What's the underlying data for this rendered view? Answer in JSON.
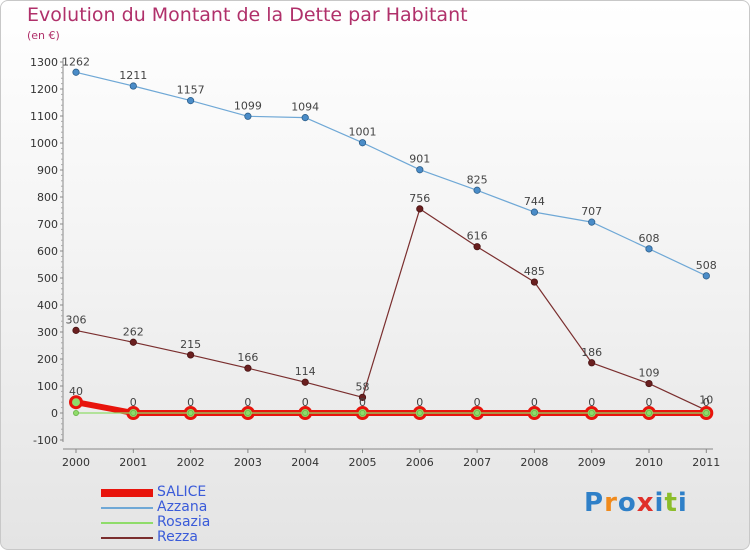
{
  "header": {
    "title": "Evolution du Montant de la Dette par Habitant",
    "subtitle": "(en €)"
  },
  "logo": {
    "text": "Proxiti",
    "colors": [
      "#2f80c8",
      "#f08a1c",
      "#2f80c8",
      "#e0302a",
      "#2f80c8",
      "#8cbd2a",
      "#2f80c8"
    ]
  },
  "chart_data": {
    "type": "line",
    "title": "Evolution du Montant de la Dette par Habitant",
    "subtitle": "(en €)",
    "xlabel": "",
    "ylabel": "",
    "x": [
      "2000",
      "2001",
      "2002",
      "2003",
      "2004",
      "2005",
      "2006",
      "2007",
      "2008",
      "2009",
      "2010",
      "2011"
    ],
    "ylim": [
      -100,
      1300
    ],
    "yticks": [
      -100,
      0,
      100,
      200,
      300,
      400,
      500,
      600,
      700,
      800,
      900,
      1000,
      1100,
      1200,
      1300
    ],
    "grid": false,
    "legend_position": "bottom-left",
    "series": [
      {
        "name": "SALICE",
        "color": "#e8140c",
        "values": [
          40,
          0,
          0,
          0,
          0,
          0,
          0,
          0,
          0,
          0,
          0,
          0
        ],
        "labels": [
          "40",
          "0",
          "0",
          "0",
          "0",
          "0",
          "0",
          "0",
          "0",
          "0",
          "0",
          "0"
        ]
      },
      {
        "name": "Azzana",
        "color": "#6fa8d6",
        "values": [
          1262,
          1211,
          1157,
          1099,
          1094,
          1001,
          901,
          825,
          744,
          707,
          608,
          508
        ],
        "labels": [
          "1262",
          "1211",
          "1157",
          "1099",
          "1094",
          "1001",
          "901",
          "825",
          "744",
          "707",
          "608",
          "508"
        ]
      },
      {
        "name": "Rosazia",
        "color": "#8fdc6a",
        "values": [
          0,
          0,
          0,
          0,
          0,
          0,
          0,
          0,
          0,
          0,
          0,
          0
        ],
        "labels": [
          "",
          "",
          "",
          "",
          "",
          "",
          "",
          "",
          "",
          "",
          "",
          ""
        ]
      },
      {
        "name": "Rezza",
        "color": "#7a2e2e",
        "values": [
          306,
          262,
          215,
          166,
          114,
          58,
          756,
          616,
          485,
          186,
          109,
          10
        ],
        "labels": [
          "306",
          "262",
          "215",
          "166",
          "114",
          "58",
          "756",
          "616",
          "485",
          "186",
          "109",
          "10"
        ]
      }
    ]
  }
}
